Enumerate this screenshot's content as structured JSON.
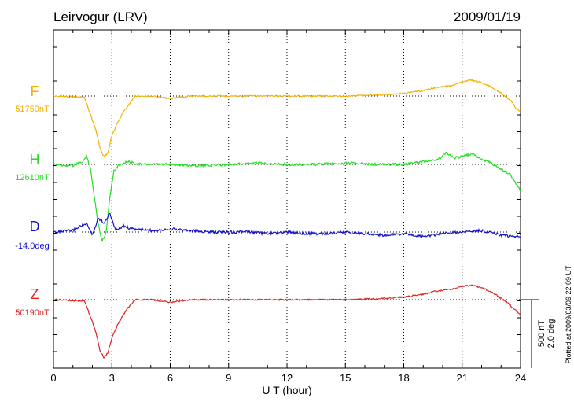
{
  "chart_data": {
    "type": "line",
    "title": "Leirvogur (LRV)",
    "date": "2009/01/19",
    "xlabel": "U T (hour)",
    "xlim": [
      0,
      24
    ],
    "x_ticks": [
      "0",
      "3",
      "6",
      "9",
      "12",
      "15",
      "18",
      "21",
      "24"
    ],
    "grid": true,
    "scale_label": "500 nT",
    "scale_label_2": "2.0 deg",
    "plotted_note": "Plotted at 2009/03/09 22:09 UT",
    "series": [
      {
        "name": "F",
        "baseline_label": "51750nT",
        "color": "#f2b000",
        "x": [
          0,
          1.6,
          1.8,
          2.0,
          2.2,
          2.4,
          2.6,
          2.8,
          3.0,
          3.3,
          3.6,
          3.9,
          4.2,
          4.5,
          5.0,
          6.0,
          7.0,
          8.0,
          9.0,
          10.0,
          11.0,
          12.0,
          13.0,
          14.0,
          15.0,
          16.0,
          17.0,
          18.0,
          19.0,
          19.5,
          20.0,
          20.5,
          21.0,
          21.5,
          22.0,
          22.5,
          23.0,
          23.3,
          23.6,
          23.8,
          24.0
        ],
        "values": [
          0,
          -10,
          -100,
          -180,
          -270,
          -400,
          -460,
          -430,
          -300,
          -200,
          -120,
          -60,
          0,
          0,
          0,
          -20,
          0,
          0,
          0,
          0,
          0,
          0,
          0,
          0,
          0,
          5,
          10,
          20,
          40,
          60,
          70,
          80,
          110,
          120,
          100,
          70,
          20,
          -10,
          -50,
          -100,
          -120
        ]
      },
      {
        "name": "H",
        "baseline_label": "12610nT",
        "color": "#22dd22",
        "x": [
          0,
          1.0,
          1.5,
          1.7,
          1.9,
          2.1,
          2.3,
          2.5,
          2.7,
          2.9,
          3.1,
          3.4,
          3.8,
          4.5,
          6.0,
          7.5,
          9.0,
          10.5,
          12.0,
          13.5,
          15.0,
          16.5,
          18.0,
          19.0,
          19.8,
          20.2,
          20.6,
          21.0,
          21.5,
          22.0,
          22.5,
          23.0,
          23.5,
          23.8,
          24.0
        ],
        "values": [
          0,
          -10,
          20,
          60,
          -20,
          -250,
          -450,
          -580,
          -520,
          -240,
          -50,
          0,
          20,
          0,
          0,
          -10,
          0,
          10,
          0,
          0,
          10,
          0,
          0,
          20,
          40,
          90,
          50,
          60,
          80,
          40,
          10,
          -40,
          -80,
          -150,
          -200
        ]
      },
      {
        "name": "D",
        "baseline_label": "-14.0deg",
        "color": "#1111cc",
        "x": [
          0,
          1.0,
          1.4,
          1.7,
          2.0,
          2.3,
          2.6,
          2.9,
          3.2,
          3.6,
          4.0,
          5.0,
          6.0,
          7.0,
          8.0,
          9.0,
          10.0,
          11.0,
          12.0,
          13.0,
          14.0,
          15.0,
          16.0,
          17.0,
          18.0,
          19.0,
          20.0,
          21.0,
          22.0,
          23.0,
          24.0
        ],
        "values": [
          0,
          0.1,
          0.4,
          0.5,
          -0.2,
          0.9,
          0.6,
          1.2,
          0.1,
          0.4,
          0.2,
          0.1,
          0.2,
          0.1,
          0,
          0,
          0,
          -0.1,
          0,
          -0.1,
          -0.1,
          0,
          -0.1,
          -0.2,
          -0.1,
          -0.3,
          -0.1,
          0,
          0.1,
          -0.2,
          -0.3
        ]
      },
      {
        "name": "Z",
        "baseline_label": "50190nT",
        "color": "#dd2222",
        "x": [
          0,
          1.6,
          1.8,
          2.0,
          2.2,
          2.4,
          2.6,
          2.8,
          3.0,
          3.3,
          3.6,
          3.9,
          4.2,
          4.5,
          5.0,
          6.0,
          7.0,
          8.0,
          9.0,
          10.0,
          11.0,
          12.0,
          13.0,
          14.0,
          15.0,
          16.0,
          17.0,
          18.0,
          19.0,
          19.5,
          20.0,
          20.5,
          21.0,
          21.5,
          22.0,
          22.5,
          23.0,
          23.3,
          23.6,
          23.8,
          24.0
        ],
        "values": [
          0,
          -10,
          -90,
          -170,
          -260,
          -390,
          -440,
          -400,
          -290,
          -190,
          -110,
          -50,
          0,
          0,
          0,
          -20,
          0,
          0,
          0,
          0,
          0,
          0,
          0,
          0,
          0,
          5,
          10,
          20,
          40,
          60,
          70,
          80,
          100,
          110,
          90,
          60,
          10,
          -20,
          -60,
          -90,
          -110
        ]
      }
    ]
  }
}
